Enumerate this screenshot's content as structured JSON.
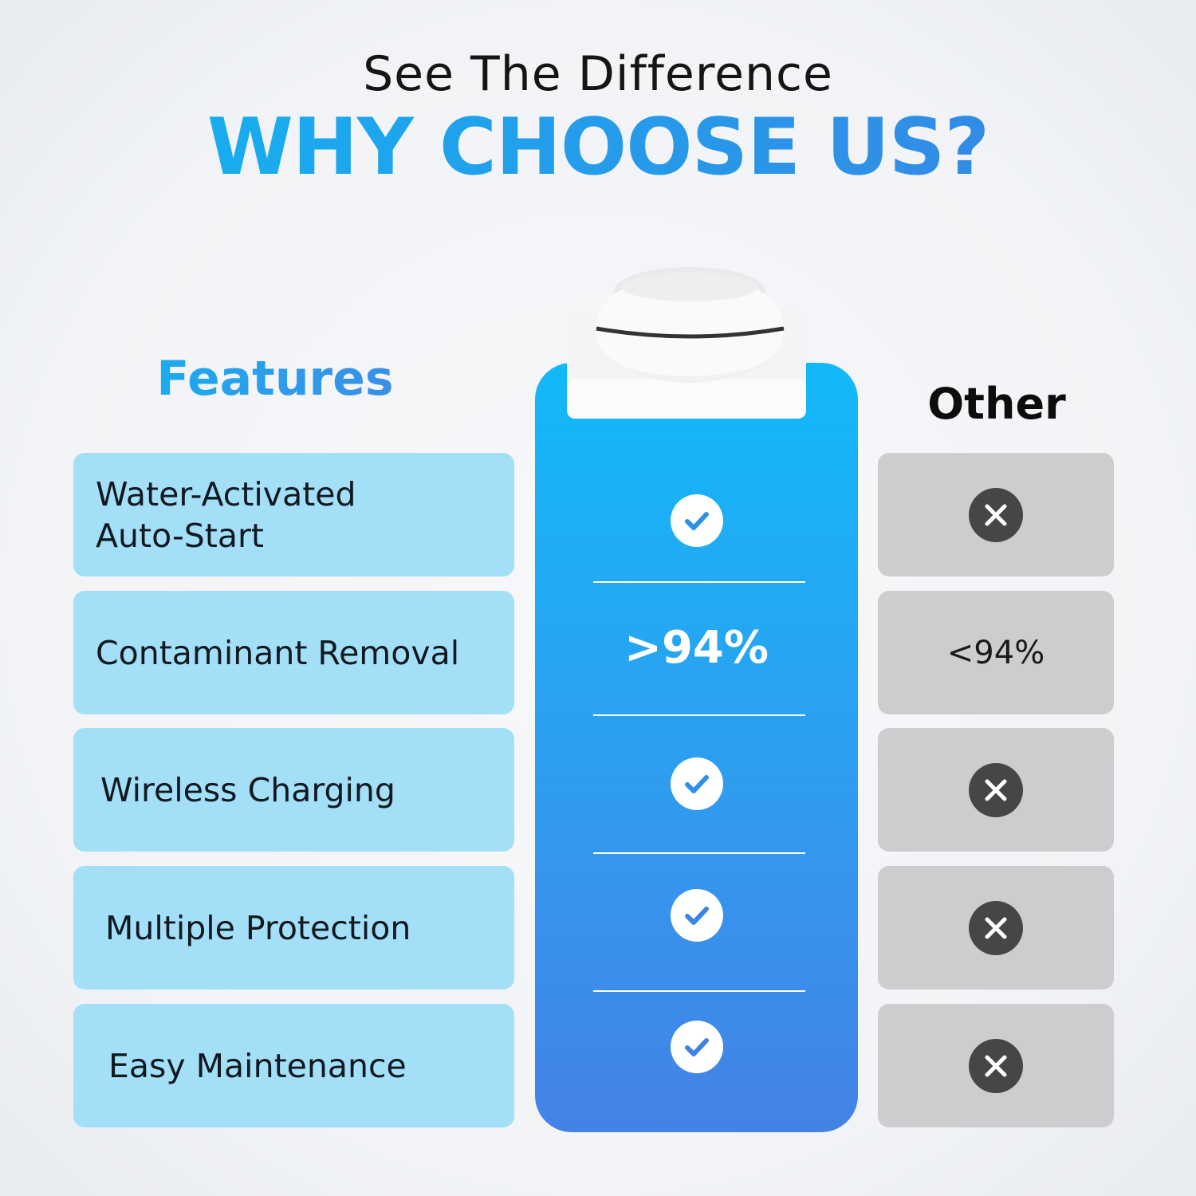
{
  "header": {
    "subtitle": "See The Difference",
    "title": "WHY CHOOSE US?"
  },
  "columns": {
    "features": "Features",
    "other": "Other"
  },
  "rows": [
    {
      "feature": "Water-Activated\nAuto-Start",
      "ours": "check",
      "other": "x"
    },
    {
      "feature": "Contaminant Removal",
      "ours": ">94%",
      "other": "<94%"
    },
    {
      "feature": "Wireless Charging",
      "ours": "check",
      "other": "x"
    },
    {
      "feature": "Multiple Protection",
      "ours": "check",
      "other": "x"
    },
    {
      "feature": "Easy Maintenance",
      "ours": "check",
      "other": "x"
    }
  ],
  "colors": {
    "accent_start": "#12b9f9",
    "accent_end": "#4582e6",
    "feature_bg": "#a3e0f8",
    "other_bg": "#cdcdcf",
    "x_icon": "#464646"
  }
}
